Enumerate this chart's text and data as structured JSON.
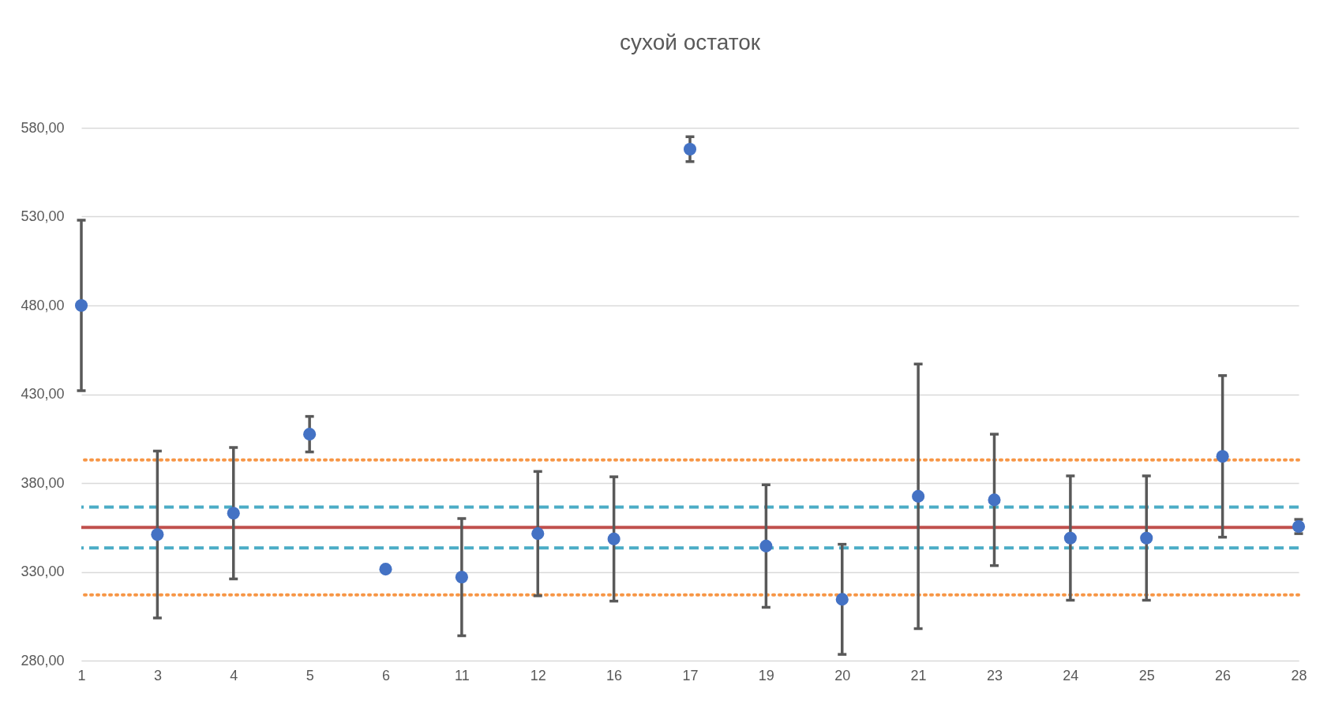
{
  "chart_data": {
    "type": "scatter",
    "title": "сухой остаток",
    "categories": [
      "1",
      "3",
      "4",
      "5",
      "6",
      "11",
      "12",
      "16",
      "17",
      "19",
      "20",
      "21",
      "23",
      "24",
      "25",
      "26",
      "28"
    ],
    "series": [
      {
        "color": "#4472c4",
        "values": [
          480,
          351,
          363,
          407.5,
          331.5,
          327,
          351.5,
          348.5,
          568,
          344.5,
          314.5,
          372.5,
          370.5,
          349,
          349,
          395,
          355.5
        ],
        "errors": [
          48,
          47,
          37,
          10,
          null,
          33,
          35,
          35,
          7,
          34.5,
          31,
          74.5,
          37,
          35,
          35,
          45.5,
          4
        ]
      }
    ],
    "ylim": [
      280,
      580
    ],
    "yticks": [
      {
        "value": 280,
        "label": "280,00"
      },
      {
        "value": 330,
        "label": "330,00"
      },
      {
        "value": 380,
        "label": "380,00"
      },
      {
        "value": 430,
        "label": "430,00"
      },
      {
        "value": 480,
        "label": "480,00"
      },
      {
        "value": 530,
        "label": "530,00"
      },
      {
        "value": 580,
        "label": "580,00"
      }
    ],
    "grid": "y",
    "marker": "circle",
    "ref_lines": [
      {
        "axis": "y",
        "value": 355,
        "color": "#c0504d",
        "line_style": "solid"
      },
      {
        "axis": "y",
        "value": 366.5,
        "color": "#4bacc6",
        "line_style": "dashed"
      },
      {
        "axis": "y",
        "value": 343.5,
        "color": "#4bacc6",
        "line_style": "dashed"
      },
      {
        "axis": "y",
        "value": 393,
        "color": "#f79646",
        "line_style": "dotted"
      },
      {
        "axis": "y",
        "value": 317,
        "color": "#f79646",
        "line_style": "dotted"
      }
    ]
  }
}
